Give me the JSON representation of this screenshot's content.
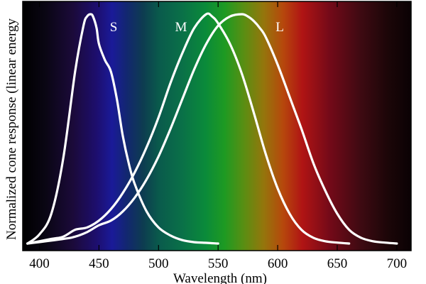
{
  "chart_data": {
    "type": "line",
    "title": "",
    "xlabel": "Wavelength (nm)",
    "ylabel": "Normalized cone response (linear energy",
    "xlim": [
      386,
      712
    ],
    "ylim": [
      0,
      1.0
    ],
    "x_ticks": [
      400,
      450,
      500,
      550,
      600,
      650,
      700
    ],
    "x_tick_labels": [
      "400",
      "450",
      "500",
      "550",
      "600",
      "650",
      "700"
    ],
    "grid": false,
    "background": "visible spectrum gradient",
    "series": [
      {
        "name": "S",
        "label": "S",
        "color": "#ffffff",
        "x": [
          390,
          400,
          410,
          420,
          430,
          437,
          440,
          443,
          445,
          448,
          450,
          455,
          460,
          465,
          470,
          475,
          480,
          490,
          500,
          510,
          520,
          530,
          540,
          550
        ],
        "y": [
          0.0,
          0.04,
          0.13,
          0.37,
          0.75,
          0.95,
          0.99,
          1.0,
          0.99,
          0.94,
          0.87,
          0.8,
          0.75,
          0.63,
          0.47,
          0.35,
          0.26,
          0.14,
          0.07,
          0.035,
          0.015,
          0.006,
          0.003,
          0.0
        ]
      },
      {
        "name": "M",
        "label": "M",
        "color": "#ffffff",
        "x": [
          390,
          410,
          420,
          430,
          440,
          450,
          460,
          470,
          480,
          490,
          500,
          510,
          520,
          530,
          540,
          545,
          550,
          560,
          570,
          580,
          590,
          600,
          610,
          620,
          630,
          640,
          650,
          660
        ],
        "y": [
          0.0,
          0.02,
          0.03,
          0.06,
          0.07,
          0.1,
          0.15,
          0.22,
          0.31,
          0.42,
          0.55,
          0.7,
          0.83,
          0.94,
          1.0,
          0.99,
          0.96,
          0.87,
          0.74,
          0.57,
          0.39,
          0.24,
          0.13,
          0.06,
          0.025,
          0.01,
          0.004,
          0.0
        ]
      },
      {
        "name": "L",
        "label": "L",
        "color": "#ffffff",
        "x": [
          390,
          420,
          430,
          440,
          450,
          460,
          470,
          480,
          490,
          500,
          510,
          520,
          530,
          540,
          550,
          560,
          570,
          575,
          580,
          585,
          590,
          600,
          610,
          620,
          630,
          640,
          650,
          660,
          670,
          680,
          690,
          700
        ],
        "y": [
          0.0,
          0.02,
          0.03,
          0.05,
          0.08,
          0.1,
          0.14,
          0.2,
          0.28,
          0.38,
          0.5,
          0.63,
          0.76,
          0.87,
          0.95,
          0.99,
          1.0,
          0.99,
          0.97,
          0.94,
          0.9,
          0.78,
          0.64,
          0.5,
          0.35,
          0.23,
          0.13,
          0.06,
          0.025,
          0.01,
          0.004,
          0.0
        ]
      }
    ]
  }
}
